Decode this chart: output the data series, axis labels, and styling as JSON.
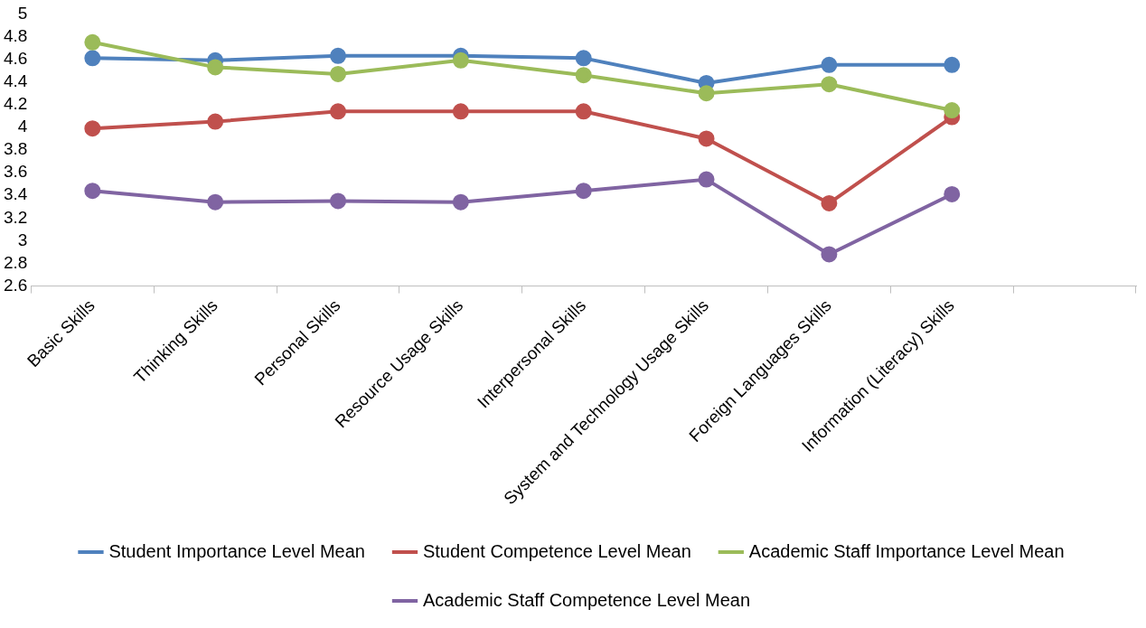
{
  "chart_data": {
    "type": "line",
    "categories": [
      "Basic Skills",
      "Thinking Skills",
      "Personal Skills",
      "Resource Usage Skills",
      "Interpersonal Skills",
      "System and Technology Usage Skills",
      "Foreign Languages Skills",
      "Information (Literacy) Skills",
      null
    ],
    "series": [
      {
        "name": "Student Importance Level Mean",
        "color": "#4f81bd",
        "values": [
          4.61,
          4.59,
          4.63,
          4.63,
          4.61,
          4.39,
          4.55,
          4.55,
          null
        ]
      },
      {
        "name": "Student Competence Level Mean",
        "color": "#c0504d",
        "values": [
          3.99,
          4.05,
          4.14,
          4.14,
          4.14,
          3.9,
          3.33,
          4.09,
          null
        ]
      },
      {
        "name": "Academic Staff Importance Level Mean",
        "color": "#9bbb59",
        "values": [
          4.75,
          4.53,
          4.47,
          4.59,
          4.46,
          4.3,
          4.38,
          4.15,
          null
        ]
      },
      {
        "name": "Academic Staff Competence Level Mean",
        "color": "#8064a2",
        "values": [
          3.44,
          3.34,
          3.35,
          3.34,
          3.44,
          3.54,
          2.88,
          3.41,
          null
        ]
      }
    ],
    "ylim": [
      2.6,
      5
    ],
    "yticks": [
      2.6,
      2.8,
      3,
      3.2,
      3.4,
      3.6,
      3.8,
      4,
      4.2,
      4.4,
      4.6,
      4.8,
      5
    ],
    "grid": false,
    "legend": "bottom",
    "marker": "circle",
    "line_style": "solid"
  }
}
